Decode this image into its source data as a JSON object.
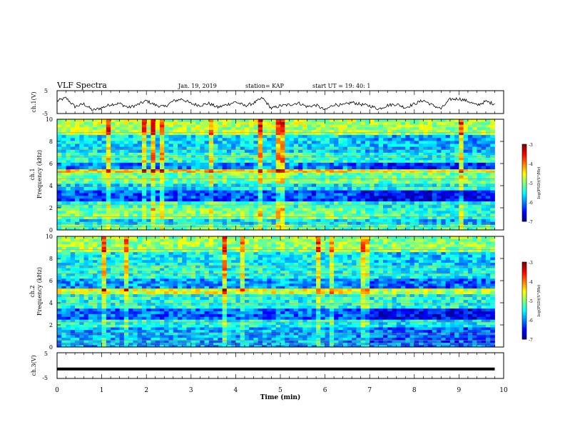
{
  "header": {
    "title": "VLF Spectra",
    "date": "Jan. 19, 2019",
    "station": "station= KAP",
    "start_time": "start  UT =   19: 40: 1"
  },
  "chart_data": [
    {
      "type": "line",
      "panel": "ch1-waveform",
      "ylabel": "ch.1(V)",
      "ylim": [
        -5,
        5
      ],
      "yticks": [
        "5",
        "-5"
      ],
      "xlim": [
        0,
        10
      ],
      "x_end": 9.8,
      "series": [
        {
          "color": "#000000",
          "x": [
            0,
            0.2,
            0.4,
            0.6,
            0.8,
            1.0,
            1.2,
            1.4,
            1.6,
            1.8,
            2.0,
            2.2,
            2.4,
            2.6,
            2.8,
            3.0,
            3.2,
            3.4,
            3.6,
            3.8,
            4.0,
            4.2,
            4.4,
            4.6,
            4.8,
            5.0,
            5.2,
            5.4,
            5.6,
            5.8,
            6.0,
            6.2,
            6.4,
            6.6,
            6.8,
            7.0,
            7.2,
            7.4,
            7.6,
            7.8,
            8.0,
            8.2,
            8.4,
            8.6,
            8.8,
            9.0,
            9.2,
            9.4,
            9.6,
            9.8
          ],
          "values": [
            0.5,
            1.8,
            -2.0,
            -0.8,
            -3.6,
            -2.5,
            -1.0,
            -0.6,
            -2.4,
            -1.2,
            0.6,
            -1.3,
            -2.1,
            0.4,
            1.4,
            -0.7,
            -1.4,
            -0.6,
            -2.3,
            -1.1,
            0.1,
            -1.6,
            -0.5,
            1.8,
            -2.8,
            -1.6,
            -1.2,
            -0.3,
            -2.0,
            -1.3,
            -3.5,
            -1.0,
            -1.4,
            -0.1,
            -1.0,
            -1.6,
            -3.0,
            -1.4,
            -0.9,
            -2.4,
            -0.8,
            0.8,
            -1.3,
            -2.9,
            1.2,
            1.5,
            0.4,
            -1.4,
            0.3,
            -0.8
          ]
        }
      ]
    },
    {
      "type": "heatmap",
      "panel": "ch1-spectrogram",
      "ylabel": "ch.1\nFrequency (kHz)",
      "ylim": [
        0,
        10
      ],
      "yticks": [
        "0",
        "2",
        "4",
        "6",
        "8",
        "10"
      ],
      "xlim": [
        0,
        10
      ],
      "x_end": 9.8,
      "colorbar": {
        "label": "log(PSD)(V²/Hz)",
        "range": [
          -7,
          -3
        ],
        "ticks": [
          "-3",
          "-4",
          "-5",
          "-6",
          "-7"
        ]
      },
      "freq_bands": [
        {
          "f": [
            0.0,
            0.5
          ],
          "early": -5.2,
          "late": -5.2
        },
        {
          "f": [
            0.5,
            1.0
          ],
          "early": -5.6,
          "late": -5.8
        },
        {
          "f": [
            1.0,
            2.0
          ],
          "early": -5.0,
          "late": -5.3
        },
        {
          "f": [
            2.0,
            2.6
          ],
          "early": -5.3,
          "late": -5.5
        },
        {
          "f": [
            2.6,
            3.6
          ],
          "early": -6.2,
          "late": -6.5
        },
        {
          "f": [
            3.6,
            4.2
          ],
          "early": -5.6,
          "late": -5.4
        },
        {
          "f": [
            4.2,
            5.2
          ],
          "early": -5.1,
          "late": -5.1
        },
        {
          "f": [
            5.2,
            5.5
          ],
          "early": -4.3,
          "late": -4.6
        },
        {
          "f": [
            5.5,
            6.1
          ],
          "early": -6.0,
          "late": -6.3
        },
        {
          "f": [
            6.1,
            7.0
          ],
          "early": -5.3,
          "late": -5.4
        },
        {
          "f": [
            7.0,
            8.6
          ],
          "early": -5.6,
          "late": -5.8
        },
        {
          "f": [
            8.6,
            10.0
          ],
          "early": -4.8,
          "late": -4.9
        }
      ]
    },
    {
      "type": "heatmap",
      "panel": "ch2-spectrogram",
      "ylabel": "ch.2\nFrequency (kHz)",
      "ylim": [
        0,
        10
      ],
      "yticks": [
        "0",
        "2",
        "4",
        "6",
        "8",
        "10"
      ],
      "xlim": [
        0,
        10
      ],
      "x_end": 9.8,
      "colorbar": {
        "label": "log(PSD)(V²/Hz)",
        "range": [
          -7,
          -3
        ],
        "ticks": [
          "-3",
          "-4",
          "-5",
          "-6",
          "-7"
        ]
      },
      "freq_bands": [
        {
          "f": [
            0.0,
            0.4
          ],
          "early": -5.8,
          "late": -6.0
        },
        {
          "f": [
            0.4,
            1.8
          ],
          "early": -5.8,
          "late": -6.1
        },
        {
          "f": [
            1.8,
            2.5
          ],
          "early": -5.4,
          "late": -5.6
        },
        {
          "f": [
            2.5,
            3.5
          ],
          "early": -6.1,
          "late": -6.5
        },
        {
          "f": [
            3.5,
            4.8
          ],
          "early": -5.4,
          "late": -5.4
        },
        {
          "f": [
            4.8,
            5.3
          ],
          "early": -4.6,
          "late": -4.8
        },
        {
          "f": [
            5.3,
            6.2
          ],
          "early": -5.9,
          "late": -6.1
        },
        {
          "f": [
            6.2,
            7.4
          ],
          "early": -5.4,
          "late": -5.5
        },
        {
          "f": [
            7.4,
            8.6
          ],
          "early": -5.5,
          "late": -5.7
        },
        {
          "f": [
            8.6,
            10.0
          ],
          "early": -4.9,
          "late": -5.0
        }
      ]
    },
    {
      "type": "line",
      "panel": "ch3-waveform",
      "ylabel": "ch.3(V)",
      "ylim": [
        -5,
        5
      ],
      "yticks": [
        "5",
        "-5"
      ],
      "xlim": [
        0,
        10
      ],
      "x_end": 9.8,
      "series": [
        {
          "color": "#000000",
          "x": [
            0,
            9.8
          ],
          "values": [
            -1.3,
            -1.3
          ]
        }
      ]
    }
  ],
  "x_axis": {
    "label": "Time  (min)",
    "ticks": [
      "0",
      "1",
      "2",
      "3",
      "4",
      "5",
      "6",
      "7",
      "8",
      "9",
      "10"
    ],
    "range": [
      0,
      10
    ]
  }
}
